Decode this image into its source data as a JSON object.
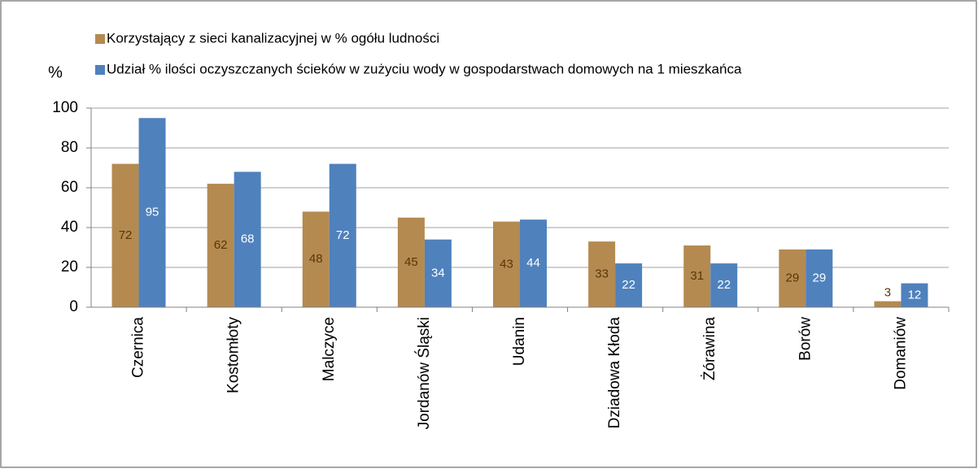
{
  "chart_data": {
    "type": "bar",
    "y_label": "%",
    "categories": [
      "Czernica",
      "Kostomłoty",
      "Malczyce",
      "Jordanów Śląski",
      "Udanin",
      "Dziadowa Kłoda",
      "Żórawina",
      "Borów",
      "Domaniów"
    ],
    "series": [
      {
        "name": "Korzystający z sieci kanalizacyjnej w % ogółu ludności",
        "color": "#b48a50",
        "label_color": "#5a3608",
        "values": [
          72,
          62,
          48,
          45,
          43,
          33,
          31,
          29,
          3
        ]
      },
      {
        "name": "Udział % ilości oczyszczanych ścieków w zużyciu wody w gospodarstwach domowych na 1 mieszkańca",
        "color": "#4f81bd",
        "label_color": "#ffffff",
        "values": [
          95,
          68,
          72,
          34,
          44,
          22,
          22,
          29,
          12
        ]
      }
    ],
    "ylim": [
      0,
      100
    ],
    "yticks": [
      0,
      20,
      40,
      60,
      80,
      100
    ],
    "grid": true
  }
}
